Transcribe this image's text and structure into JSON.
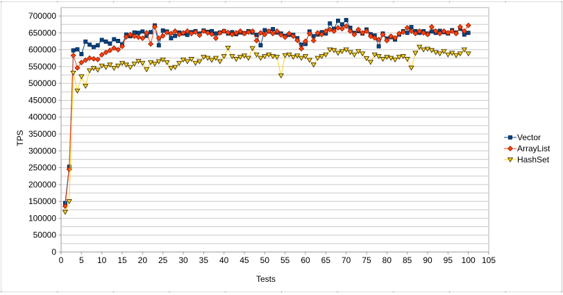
{
  "chart_data": {
    "type": "line",
    "title": "",
    "xlabel": "Tests",
    "ylabel": "TPS",
    "xlim": [
      0,
      105
    ],
    "ylim": [
      0,
      725000
    ],
    "x_ticks": [
      0,
      5,
      10,
      15,
      20,
      25,
      30,
      35,
      40,
      45,
      50,
      55,
      60,
      65,
      70,
      75,
      80,
      85,
      90,
      95,
      100,
      105
    ],
    "y_ticks": [
      0,
      50000,
      100000,
      150000,
      200000,
      250000,
      300000,
      350000,
      400000,
      450000,
      500000,
      550000,
      600000,
      650000,
      700000
    ],
    "grid": {
      "horizontal_step": 25000,
      "vertical": false
    },
    "legend_position": "right",
    "colors": {
      "grid": "#c9c9c9",
      "wall_border": "#b0b0b0",
      "axis": "#9a9a9a",
      "text": "#000000",
      "background": "#ffffff"
    },
    "x_start": 1,
    "x_step": 1,
    "series": [
      {
        "name": "Vector",
        "color": "#004586",
        "marker": "square",
        "marker_stroke": "#00264d",
        "values": [
          145000,
          253000,
          598000,
          601000,
          587000,
          624000,
          615000,
          608000,
          613000,
          629000,
          624000,
          618000,
          631000,
          626000,
          616000,
          645000,
          640000,
          651000,
          650000,
          654000,
          641000,
          652000,
          672000,
          613000,
          657000,
          654000,
          634000,
          641000,
          651000,
          648000,
          644000,
          652000,
          655000,
          648000,
          657000,
          653000,
          655000,
          648000,
          651000,
          655000,
          648000,
          652000,
          646000,
          651000,
          649000,
          655000,
          651000,
          644000,
          613000,
          658000,
          654000,
          661000,
          651000,
          648000,
          641000,
          644000,
          644000,
          634000,
          615000,
          617000,
          654000,
          640000,
          645000,
          652000,
          648000,
          678000,
          662000,
          686000,
          675000,
          688000,
          665000,
          650000,
          655000,
          648000,
          660000,
          646000,
          642000,
          610000,
          648000,
          633000,
          637000,
          630000,
          645000,
          655000,
          650000,
          667000,
          655000,
          650000,
          655000,
          648000,
          654000,
          650000,
          656000,
          652000,
          648000,
          658000,
          651000,
          662000,
          645000,
          650000
        ]
      },
      {
        "name": "ArrayList",
        "color": "#FF420E",
        "marker": "diamond",
        "marker_stroke": "#992000",
        "values": [
          136000,
          245000,
          583000,
          546000,
          562000,
          569000,
          575000,
          573000,
          571000,
          585000,
          592000,
          598000,
          605000,
          600000,
          610000,
          638000,
          645000,
          640000,
          637000,
          634000,
          650000,
          617000,
          668000,
          634000,
          641000,
          651000,
          648000,
          655000,
          645000,
          650000,
          655000,
          648000,
          652000,
          643000,
          655000,
          650000,
          646000,
          634000,
          650000,
          655000,
          651000,
          645000,
          650000,
          655000,
          648000,
          652000,
          655000,
          627000,
          650000,
          645000,
          655000,
          648000,
          655000,
          644000,
          637000,
          648000,
          640000,
          628000,
          603000,
          625000,
          648000,
          627000,
          650000,
          645000,
          655000,
          660000,
          655000,
          665000,
          662000,
          670000,
          655000,
          645000,
          660000,
          650000,
          655000,
          640000,
          635000,
          630000,
          645000,
          627000,
          640000,
          635000,
          648000,
          652000,
          665000,
          655000,
          648000,
          655000,
          650000,
          645000,
          668000,
          655000,
          648000,
          655000,
          650000,
          655000,
          648000,
          668000,
          655000,
          672000
        ]
      },
      {
        "name": "HashSet",
        "color": "#FFD320",
        "marker": "triangle-down",
        "marker_stroke": "#3f3300",
        "values": [
          118000,
          150000,
          531000,
          478000,
          520000,
          492000,
          538000,
          545000,
          540000,
          552000,
          548000,
          555000,
          545000,
          552000,
          560000,
          555000,
          548000,
          558000,
          566000,
          560000,
          541000,
          562000,
          558000,
          565000,
          570000,
          562000,
          545000,
          548000,
          560000,
          570000,
          565000,
          572000,
          560000,
          565000,
          578000,
          575000,
          569000,
          575000,
          565000,
          580000,
          605000,
          580000,
          572000,
          578000,
          582000,
          575000,
          604000,
          585000,
          575000,
          580000,
          585000,
          580000,
          578000,
          523000,
          583000,
          585000,
          578000,
          582000,
          575000,
          580000,
          569000,
          555000,
          575000,
          580000,
          585000,
          600000,
          598000,
          590000,
          595000,
          600000,
          592000,
          585000,
          595000,
          588000,
          574000,
          563000,
          585000,
          580000,
          572000,
          578000,
          575000,
          570000,
          578000,
          580000,
          572000,
          546000,
          590000,
          608000,
          600000,
          602000,
          598000,
          592000,
          588000,
          595000,
          585000,
          590000,
          583000,
          588000,
          600000,
          588000
        ]
      }
    ]
  },
  "legend": {
    "items": [
      {
        "label": "Vector"
      },
      {
        "label": "ArrayList"
      },
      {
        "label": "HashSet"
      }
    ]
  }
}
